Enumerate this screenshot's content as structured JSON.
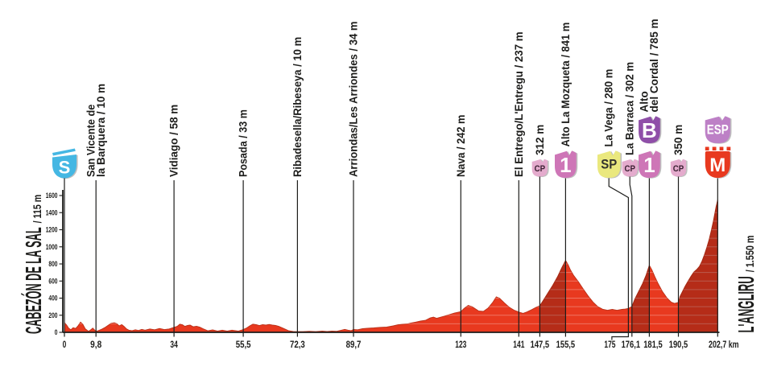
{
  "app": {
    "type": "cycling-stage-profile"
  },
  "chart_data": {
    "type": "area",
    "start_title": {
      "name": "CABEZÓN DE LA SAL",
      "suffix": "/ 115 m"
    },
    "finish_title": {
      "name": "L'ANGLIRU",
      "suffix": "/ 1.550 m"
    },
    "y_axis": {
      "unit": "m",
      "min": 0,
      "max": 1600,
      "tick_step": 200,
      "tick_labels": [
        "0",
        "200",
        "400",
        "600",
        "800",
        "1000",
        "1200",
        "1400",
        "1600"
      ]
    },
    "x_axis": {
      "unit": "km",
      "total_km": 202.7
    },
    "colors": {
      "profile": "#e8391f",
      "climb_shade": "rgba(0,0,0,0.22)",
      "ink": "#1d1d1b",
      "stripe": "rgba(255,255,255,0.3)"
    },
    "climb_segments_km": [
      [
        147.5,
        155.5
      ],
      [
        176.1,
        181.5
      ],
      [
        190.5,
        202.7
      ]
    ],
    "waypoints": [
      {
        "km": 0,
        "x_label": "0",
        "badges": [
          {
            "text": "S",
            "shape": "start",
            "bg": "#45b7e3",
            "fg": "#ffffff"
          }
        ]
      },
      {
        "km": 9.8,
        "x_label": "9,8",
        "lines": [
          "San Vicente de",
          "la Barquera / 10 m"
        ]
      },
      {
        "km": 34,
        "x_label": "34",
        "lines": [
          "Vidiago / 58 m"
        ]
      },
      {
        "km": 55.5,
        "x_label": "55,5",
        "lines": [
          "Posada / 33 m"
        ]
      },
      {
        "km": 72.3,
        "x_label": "72,3",
        "lines": [
          "Ribadesella/Ribeseya / 10 m"
        ]
      },
      {
        "km": 89.7,
        "x_label": "89,7",
        "lines": [
          "Arriondas/Les Arriondes / 34 m"
        ]
      },
      {
        "km": 123,
        "x_label": "123",
        "lines": [
          "Nava / 242 m"
        ]
      },
      {
        "km": 141,
        "x_label": "141",
        "lines": [
          "El Entrego/L'Entregu / 237 m"
        ]
      },
      {
        "km": 147.5,
        "x_label": "147,5",
        "lines": [
          "312 m"
        ],
        "badges": [
          {
            "text": "CP",
            "shape": "flag",
            "size": "small",
            "bg": "#e4abcd",
            "fg": "#3c2133"
          }
        ]
      },
      {
        "km": 155.5,
        "x_label": "155,5",
        "lines": [
          "Alto La Mozqueta / 841 m"
        ],
        "badges": [
          {
            "text": "1",
            "shape": "flag",
            "bg": "#ce76b7",
            "fg": "#ffffff"
          }
        ]
      },
      {
        "km": 175,
        "x_label": "175",
        "lines": [
          "La Vega / 280 m"
        ],
        "badges": [
          {
            "text": "SP",
            "shape": "flag",
            "bg": "#eae87e",
            "fg": "#33322e"
          }
        ],
        "badge_dx": -24.2,
        "label_dx": -23,
        "tick_elbow": true
      },
      {
        "km": 176.1,
        "x_label": "176,1",
        "lines": [
          "La Barraca / 302 m"
        ],
        "badges": [
          {
            "text": "CP",
            "shape": "flag",
            "size": "small",
            "bg": "#e4abcd",
            "fg": "#3c2133"
          }
        ],
        "badge_dx": -2.6,
        "label_dx": -1.5
      },
      {
        "km": 181.5,
        "x_label": "181,5",
        "lines": [
          "Alto",
          "del Cordal / 785 m"
        ],
        "badges": [
          {
            "text": "B",
            "shape": "flag",
            "bg": "#8f4fa8",
            "fg": "#ffffff"
          },
          {
            "text": "1",
            "shape": "flag",
            "bg": "#ce76b7",
            "fg": "#ffffff"
          }
        ],
        "label_dx": 4.5
      },
      {
        "km": 190.5,
        "x_label": "190,5",
        "lines": [
          "350 m"
        ],
        "badges": [
          {
            "text": "CP",
            "shape": "flag",
            "size": "small",
            "bg": "#e4abcd",
            "fg": "#3c2133"
          }
        ]
      },
      {
        "km": 202.7,
        "x_label": "202,7 km",
        "badges": [
          {
            "text": "ESP",
            "shape": "flag",
            "bg": "#bd80c6",
            "fg": "#ffffff"
          },
          {
            "text": "M",
            "shape": "finish",
            "bg": "#e8391f",
            "fg": "#ffffff"
          }
        ],
        "label_dx": 7.5
      }
    ],
    "profile_km_elev": [
      [
        0,
        115
      ],
      [
        0.7,
        85
      ],
      [
        1.3,
        50
      ],
      [
        2,
        30
      ],
      [
        2.7,
        55
      ],
      [
        3.5,
        45
      ],
      [
        4.3,
        80
      ],
      [
        5,
        120
      ],
      [
        5.7,
        95
      ],
      [
        6.5,
        40
      ],
      [
        7.5,
        12
      ],
      [
        8.2,
        30
      ],
      [
        8.8,
        50
      ],
      [
        9.3,
        30
      ],
      [
        9.8,
        12
      ],
      [
        10.5,
        20
      ],
      [
        11.5,
        35
      ],
      [
        12.5,
        55
      ],
      [
        13.5,
        80
      ],
      [
        14.5,
        105
      ],
      [
        15.5,
        112
      ],
      [
        16.3,
        100
      ],
      [
        17,
        75
      ],
      [
        17.8,
        90
      ],
      [
        18.5,
        70
      ],
      [
        19.3,
        40
      ],
      [
        20,
        25
      ],
      [
        21,
        20
      ],
      [
        22,
        30
      ],
      [
        23,
        22
      ],
      [
        24,
        35
      ],
      [
        25,
        25
      ],
      [
        26.5,
        40
      ],
      [
        28,
        30
      ],
      [
        29.5,
        45
      ],
      [
        31,
        32
      ],
      [
        32.5,
        40
      ],
      [
        34,
        58
      ],
      [
        35,
        70
      ],
      [
        35.8,
        95
      ],
      [
        36.6,
        88
      ],
      [
        37.4,
        70
      ],
      [
        38.2,
        80
      ],
      [
        39,
        85
      ],
      [
        40,
        65
      ],
      [
        41,
        72
      ],
      [
        42,
        60
      ],
      [
        43,
        42
      ],
      [
        44.5,
        18
      ],
      [
        46,
        28
      ],
      [
        47.5,
        15
      ],
      [
        49,
        25
      ],
      [
        50.5,
        15
      ],
      [
        52,
        25
      ],
      [
        54,
        15
      ],
      [
        55.5,
        33
      ],
      [
        56.5,
        50
      ],
      [
        57.5,
        75
      ],
      [
        58.5,
        95
      ],
      [
        59.5,
        90
      ],
      [
        60.5,
        80
      ],
      [
        61.5,
        90
      ],
      [
        62.5,
        85
      ],
      [
        63.5,
        92
      ],
      [
        64.5,
        85
      ],
      [
        65.5,
        80
      ],
      [
        66.5,
        70
      ],
      [
        68,
        45
      ],
      [
        69.5,
        20
      ],
      [
        71,
        10
      ],
      [
        72.3,
        8
      ],
      [
        74,
        8
      ],
      [
        76,
        12
      ],
      [
        78,
        8
      ],
      [
        80,
        14
      ],
      [
        81.5,
        10
      ],
      [
        83,
        15
      ],
      [
        84.5,
        12
      ],
      [
        86,
        25
      ],
      [
        87,
        35
      ],
      [
        88,
        25
      ],
      [
        89,
        20
      ],
      [
        89.7,
        34
      ],
      [
        91,
        30
      ],
      [
        92.5,
        42
      ],
      [
        94,
        48
      ],
      [
        96,
        52
      ],
      [
        98,
        58
      ],
      [
        100,
        62
      ],
      [
        102,
        75
      ],
      [
        103.5,
        88
      ],
      [
        105,
        95
      ],
      [
        106.5,
        100
      ],
      [
        107.5,
        108
      ],
      [
        109,
        120
      ],
      [
        110.5,
        132
      ],
      [
        112,
        140
      ],
      [
        113.5,
        168
      ],
      [
        114.5,
        178
      ],
      [
        115.5,
        165
      ],
      [
        116.5,
        175
      ],
      [
        118,
        190
      ],
      [
        119.5,
        208
      ],
      [
        121,
        225
      ],
      [
        123,
        242
      ],
      [
        124,
        280
      ],
      [
        125.3,
        315
      ],
      [
        126.5,
        300
      ],
      [
        127.5,
        275
      ],
      [
        128.5,
        250
      ],
      [
        130,
        245
      ],
      [
        131.5,
        285
      ],
      [
        133,
        355
      ],
      [
        134,
        415
      ],
      [
        135,
        400
      ],
      [
        136.5,
        345
      ],
      [
        138,
        295
      ],
      [
        139.5,
        260
      ],
      [
        141,
        237
      ],
      [
        142.3,
        222
      ],
      [
        143.5,
        238
      ],
      [
        145,
        265
      ],
      [
        146.3,
        292
      ],
      [
        147.5,
        312
      ],
      [
        148.5,
        370
      ],
      [
        150,
        460
      ],
      [
        151.5,
        550
      ],
      [
        153,
        650
      ],
      [
        154.3,
        755
      ],
      [
        155.5,
        841
      ],
      [
        156.3,
        790
      ],
      [
        157,
        730
      ],
      [
        158,
        665
      ],
      [
        159.5,
        590
      ],
      [
        161,
        505
      ],
      [
        162.5,
        425
      ],
      [
        164,
        355
      ],
      [
        165.5,
        300
      ],
      [
        167,
        270
      ],
      [
        168.5,
        258
      ],
      [
        170,
        268
      ],
      [
        171.5,
        258
      ],
      [
        173,
        268
      ],
      [
        174,
        272
      ],
      [
        175,
        280
      ],
      [
        176.1,
        302
      ],
      [
        177,
        390
      ],
      [
        178.2,
        480
      ],
      [
        179.4,
        570
      ],
      [
        180.5,
        670
      ],
      [
        181.5,
        785
      ],
      [
        182.3,
        730
      ],
      [
        183.2,
        650
      ],
      [
        184.2,
        570
      ],
      [
        185.5,
        480
      ],
      [
        187,
        400
      ],
      [
        188.3,
        352
      ],
      [
        189.3,
        338
      ],
      [
        190.5,
        350
      ],
      [
        191,
        420
      ],
      [
        191.8,
        480
      ],
      [
        192.6,
        540
      ],
      [
        193.5,
        600
      ],
      [
        194.4,
        655
      ],
      [
        195.3,
        705
      ],
      [
        196.3,
        740
      ],
      [
        197,
        770
      ],
      [
        197.8,
        830
      ],
      [
        198.6,
        910
      ],
      [
        199.3,
        990
      ],
      [
        200,
        1080
      ],
      [
        200.7,
        1190
      ],
      [
        201.3,
        1290
      ],
      [
        201.8,
        1390
      ],
      [
        202.2,
        1470
      ],
      [
        202.7,
        1550
      ]
    ]
  }
}
